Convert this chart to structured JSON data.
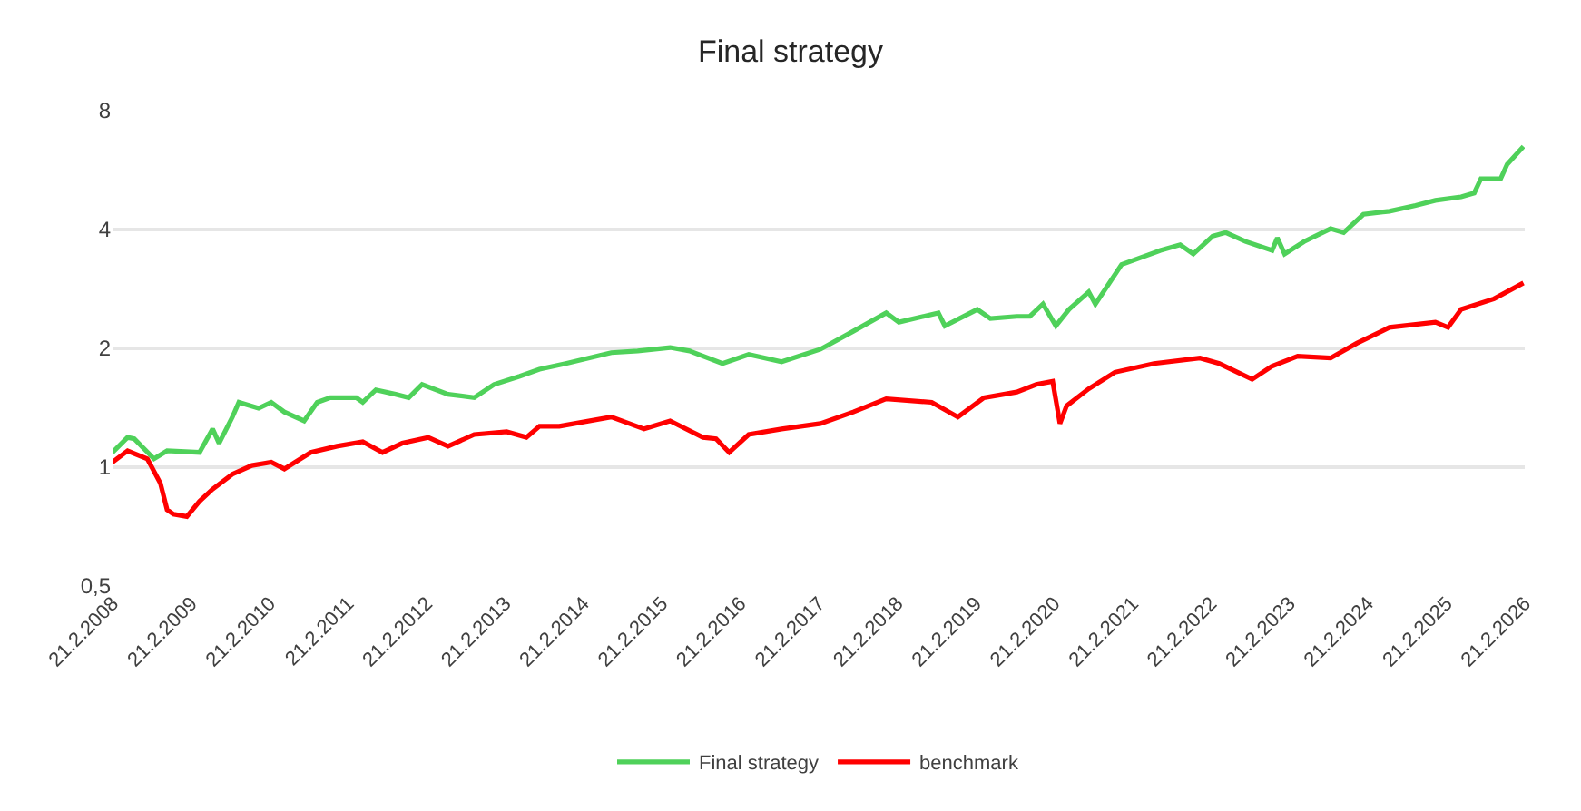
{
  "chart_data": {
    "type": "line",
    "title": "Final strategy",
    "series": [
      {
        "name": "Final strategy",
        "color": "#4fd15a",
        "x": [
          "2008-02-21",
          "2008-05",
          "2008-06",
          "2008-09",
          "2008-11",
          "2009-04",
          "2009-06",
          "2009-07",
          "2009-09",
          "2009-10",
          "2010-01",
          "2010-03",
          "2010-05",
          "2010-08",
          "2010-10",
          "2010-12",
          "2011-04",
          "2011-05",
          "2011-07",
          "2011-10",
          "2011-12",
          "2012-02",
          "2012-06",
          "2012-10",
          "2013-01",
          "2013-05",
          "2013-08",
          "2013-12",
          "2014-07",
          "2014-11",
          "2015-04",
          "2015-07",
          "2015-12",
          "2016-04",
          "2016-09",
          "2017-03",
          "2017-08",
          "2018-01",
          "2018-03",
          "2018-09",
          "2018-10",
          "2019-03",
          "2019-05",
          "2019-09",
          "2019-11",
          "2020-01",
          "2020-03",
          "2020-05",
          "2020-08",
          "2020-09",
          "2021-01",
          "2021-07",
          "2021-10",
          "2021-12",
          "2022-03",
          "2022-05",
          "2022-08",
          "2022-12-03",
          "2022-12-27",
          "2023-01-30",
          "2023-05",
          "2023-09",
          "2023-11",
          "2024-02",
          "2024-06",
          "2024-10",
          "2025-01",
          "2025-05",
          "2025-07",
          "2025-08",
          "2025-11",
          "2025-12",
          "2026-02-15"
        ],
        "values": [
          1.09,
          1.19,
          1.18,
          1.05,
          1.1,
          1.09,
          1.25,
          1.15,
          1.34,
          1.46,
          1.41,
          1.46,
          1.38,
          1.31,
          1.46,
          1.5,
          1.5,
          1.46,
          1.57,
          1.53,
          1.5,
          1.62,
          1.53,
          1.5,
          1.62,
          1.7,
          1.77,
          1.83,
          1.95,
          1.97,
          2.01,
          1.97,
          1.83,
          1.93,
          1.85,
          1.99,
          2.21,
          2.46,
          2.33,
          2.46,
          2.28,
          2.51,
          2.38,
          2.41,
          2.41,
          2.59,
          2.28,
          2.51,
          2.78,
          2.59,
          3.26,
          3.54,
          3.66,
          3.47,
          3.85,
          3.93,
          3.73,
          3.54,
          3.81,
          3.47,
          3.73,
          4.02,
          3.93,
          4.37,
          4.45,
          4.6,
          4.74,
          4.84,
          4.95,
          5.38,
          5.38,
          5.85,
          6.49
        ]
      },
      {
        "name": "benchmark",
        "color": "#ff0000",
        "x": [
          "2008-02-21",
          "2008-05",
          "2008-08",
          "2008-10",
          "2008-11",
          "2008-12",
          "2009-02",
          "2009-04",
          "2009-06",
          "2009-09",
          "2009-12",
          "2010-03",
          "2010-05",
          "2010-09",
          "2011-01",
          "2011-05",
          "2011-08",
          "2011-11",
          "2012-03",
          "2012-06",
          "2012-10",
          "2013-03",
          "2013-06",
          "2013-08",
          "2013-11",
          "2014-07",
          "2014-12",
          "2015-04",
          "2015-09",
          "2015-11",
          "2016-01",
          "2016-04",
          "2016-09",
          "2017-03",
          "2017-08",
          "2018-01",
          "2018-08",
          "2018-12",
          "2019-04",
          "2019-09",
          "2019-12",
          "2020-02-15",
          "2020-03-20",
          "2020-04-20",
          "2020-08",
          "2020-12",
          "2021-06",
          "2022-01",
          "2022-04",
          "2022-09",
          "2022-12",
          "2023-04",
          "2023-09",
          "2024-01",
          "2024-06",
          "2025-01",
          "2025-03",
          "2025-05",
          "2025-10",
          "2026-02-15"
        ],
        "values": [
          1.03,
          1.1,
          1.05,
          0.91,
          0.78,
          0.76,
          0.75,
          0.82,
          0.88,
          0.96,
          1.01,
          1.03,
          0.99,
          1.09,
          1.13,
          1.16,
          1.09,
          1.15,
          1.19,
          1.13,
          1.21,
          1.23,
          1.19,
          1.27,
          1.27,
          1.34,
          1.25,
          1.31,
          1.19,
          1.18,
          1.09,
          1.21,
          1.25,
          1.29,
          1.38,
          1.49,
          1.46,
          1.34,
          1.5,
          1.55,
          1.62,
          1.65,
          1.29,
          1.43,
          1.58,
          1.74,
          1.83,
          1.89,
          1.83,
          1.67,
          1.8,
          1.91,
          1.89,
          2.06,
          2.26,
          2.33,
          2.26,
          2.51,
          2.67,
          2.93
        ]
      }
    ],
    "xlim": [
      "2008-02-21",
      "2026-02-21"
    ],
    "xticks": [
      {
        "value": "2008-02-21",
        "label": "21.2.2008"
      },
      {
        "value": "2009-02-21",
        "label": "21.2.2009"
      },
      {
        "value": "2010-02-21",
        "label": "21.2.2010"
      },
      {
        "value": "2011-02-21",
        "label": "21.2.2011"
      },
      {
        "value": "2012-02-21",
        "label": "21.2.2012"
      },
      {
        "value": "2013-02-21",
        "label": "21.2.2013"
      },
      {
        "value": "2014-02-21",
        "label": "21.2.2014"
      },
      {
        "value": "2015-02-21",
        "label": "21.2.2015"
      },
      {
        "value": "2016-02-21",
        "label": "21.2.2016"
      },
      {
        "value": "2017-02-21",
        "label": "21.2.2017"
      },
      {
        "value": "2018-02-21",
        "label": "21.2.2018"
      },
      {
        "value": "2019-02-21",
        "label": "21.2.2019"
      },
      {
        "value": "2020-02-21",
        "label": "21.2.2020"
      },
      {
        "value": "2021-02-21",
        "label": "21.2.2021"
      },
      {
        "value": "2022-02-21",
        "label": "21.2.2022"
      },
      {
        "value": "2023-02-21",
        "label": "21.2.2023"
      },
      {
        "value": "2024-02-21",
        "label": "21.2.2024"
      },
      {
        "value": "2025-02-21",
        "label": "21.2.2025"
      },
      {
        "value": "2026-02-21",
        "label": "21.2.2026"
      }
    ],
    "ylim": [
      0.5,
      8
    ],
    "yticks": [
      {
        "value": 0.5,
        "label": "0,5"
      },
      1,
      2,
      4,
      8
    ],
    "log": true,
    "grid": "y",
    "legend": "bottom",
    "line_style": "solid"
  }
}
